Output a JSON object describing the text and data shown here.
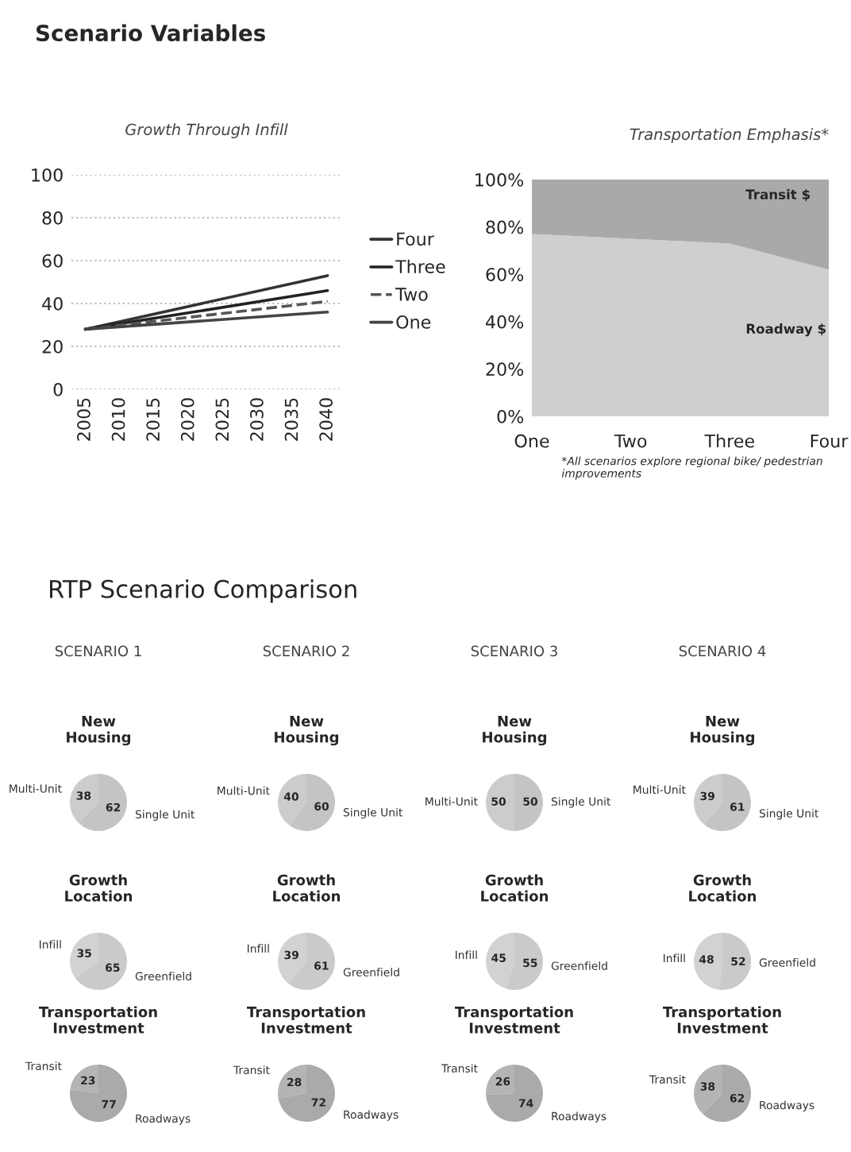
{
  "chart_data": [
    {
      "type": "line",
      "title": "Growth Through Infill",
      "x": [
        2005,
        2040
      ],
      "annotations": [
        "Scenario Variables"
      ],
      "xlim": [
        2003,
        2042
      ],
      "xticks": [
        2005,
        2010,
        2015,
        2020,
        2025,
        2030,
        2035,
        2040
      ],
      "ylim": [
        0,
        100
      ],
      "yticks": [
        0,
        20,
        40,
        60,
        80,
        100
      ],
      "grid": "y",
      "legend": "right",
      "series": [
        {
          "name": "Four",
          "color": "#333333",
          "values": [
            28,
            53
          ],
          "line_style": "solid"
        },
        {
          "name": "Three",
          "color": "#222222",
          "values": [
            28,
            46
          ],
          "line_style": "solid"
        },
        {
          "name": "Two",
          "color": "#555555",
          "values": [
            28,
            41
          ],
          "line_style": "dashed"
        },
        {
          "name": "One",
          "color": "#444444",
          "values": [
            28,
            36
          ],
          "line_style": "solid"
        }
      ]
    },
    {
      "type": "area",
      "stacked": true,
      "title": "Transportation Emphasis*",
      "categories": [
        "One",
        "Two",
        "Three",
        "Four"
      ],
      "ylim": [
        0,
        100
      ],
      "yticks": [
        {
          "value": 0,
          "label": "0%"
        },
        {
          "value": 20,
          "label": "20%"
        },
        {
          "value": 40,
          "label": "40%"
        },
        {
          "value": 60,
          "label": "60%"
        },
        {
          "value": 80,
          "label": "80%"
        },
        {
          "value": 100,
          "label": "100%"
        }
      ],
      "annotations": [
        "*All scenarios explore regional bike/ pedestrian improvements"
      ],
      "series": [
        {
          "name": "Roadway $",
          "color": "#cfcfcf",
          "values": [
            77,
            75,
            73,
            62
          ]
        },
        {
          "name": "Transit $",
          "color": "#a9a9a9",
          "values": [
            23,
            25,
            27,
            38
          ]
        }
      ]
    },
    {
      "type": "pie",
      "title": "New Housing",
      "categories": [
        "Multi-Unit",
        "Single Unit"
      ],
      "values": [
        38,
        62
      ],
      "colors": [
        "#cccccc",
        "#c4c4c4"
      ],
      "data_labels": true,
      "annotations": [
        "RTP Scenario Comparison",
        "SCENARIO 1"
      ]
    },
    {
      "type": "pie",
      "title": "New Housing",
      "categories": [
        "Multi-Unit",
        "Single Unit"
      ],
      "values": [
        40,
        60
      ],
      "colors": [
        "#cccccc",
        "#c4c4c4"
      ],
      "data_labels": true,
      "annotations": [
        "SCENARIO 2"
      ]
    },
    {
      "type": "pie",
      "title": "New Housing",
      "categories": [
        "Multi-Unit",
        "Single Unit"
      ],
      "values": [
        50,
        50
      ],
      "colors": [
        "#cccccc",
        "#c4c4c4"
      ],
      "data_labels": true,
      "annotations": [
        "SCENARIO 3"
      ]
    },
    {
      "type": "pie",
      "title": "New Housing",
      "categories": [
        "Multi-Unit",
        "Single Unit"
      ],
      "values": [
        39,
        61
      ],
      "colors": [
        "#cccccc",
        "#c4c4c4"
      ],
      "data_labels": true,
      "annotations": [
        "SCENARIO 4"
      ]
    },
    {
      "type": "pie",
      "title": "Growth Location",
      "categories": [
        "Infill",
        "Greenfield"
      ],
      "values": [
        35,
        65
      ],
      "colors": [
        "#d2d2d2",
        "#cacaca"
      ],
      "data_labels": true
    },
    {
      "type": "pie",
      "title": "Growth Location",
      "categories": [
        "Infill",
        "Greenfield"
      ],
      "values": [
        39,
        61
      ],
      "colors": [
        "#d2d2d2",
        "#cacaca"
      ],
      "data_labels": true
    },
    {
      "type": "pie",
      "title": "Growth Location",
      "categories": [
        "Infill",
        "Greenfield"
      ],
      "values": [
        45,
        55
      ],
      "colors": [
        "#d2d2d2",
        "#cacaca"
      ],
      "data_labels": true
    },
    {
      "type": "pie",
      "title": "Growth Location",
      "categories": [
        "Infill",
        "Greenfield"
      ],
      "values": [
        48,
        52
      ],
      "colors": [
        "#d2d2d2",
        "#cacaca"
      ],
      "data_labels": true
    },
    {
      "type": "pie",
      "title": "Transportation Investment",
      "categories": [
        "Transit",
        "Roadways"
      ],
      "values": [
        23,
        77
      ],
      "colors": [
        "#b4b4b4",
        "#aaaaaa"
      ],
      "data_labels": true
    },
    {
      "type": "pie",
      "title": "Transportation Investment",
      "categories": [
        "Transit",
        "Roadways"
      ],
      "values": [
        28,
        72
      ],
      "colors": [
        "#b4b4b4",
        "#aaaaaa"
      ],
      "data_labels": true
    },
    {
      "type": "pie",
      "title": "Transportation Investment",
      "categories": [
        "Transit",
        "Roadways"
      ],
      "values": [
        26,
        74
      ],
      "colors": [
        "#b4b4b4",
        "#aaaaaa"
      ],
      "data_labels": true
    },
    {
      "type": "pie",
      "title": "Transportation Investment",
      "categories": [
        "Transit",
        "Roadways"
      ],
      "values": [
        38,
        62
      ],
      "colors": [
        "#b4b4b4",
        "#aaaaaa"
      ],
      "data_labels": true
    }
  ]
}
